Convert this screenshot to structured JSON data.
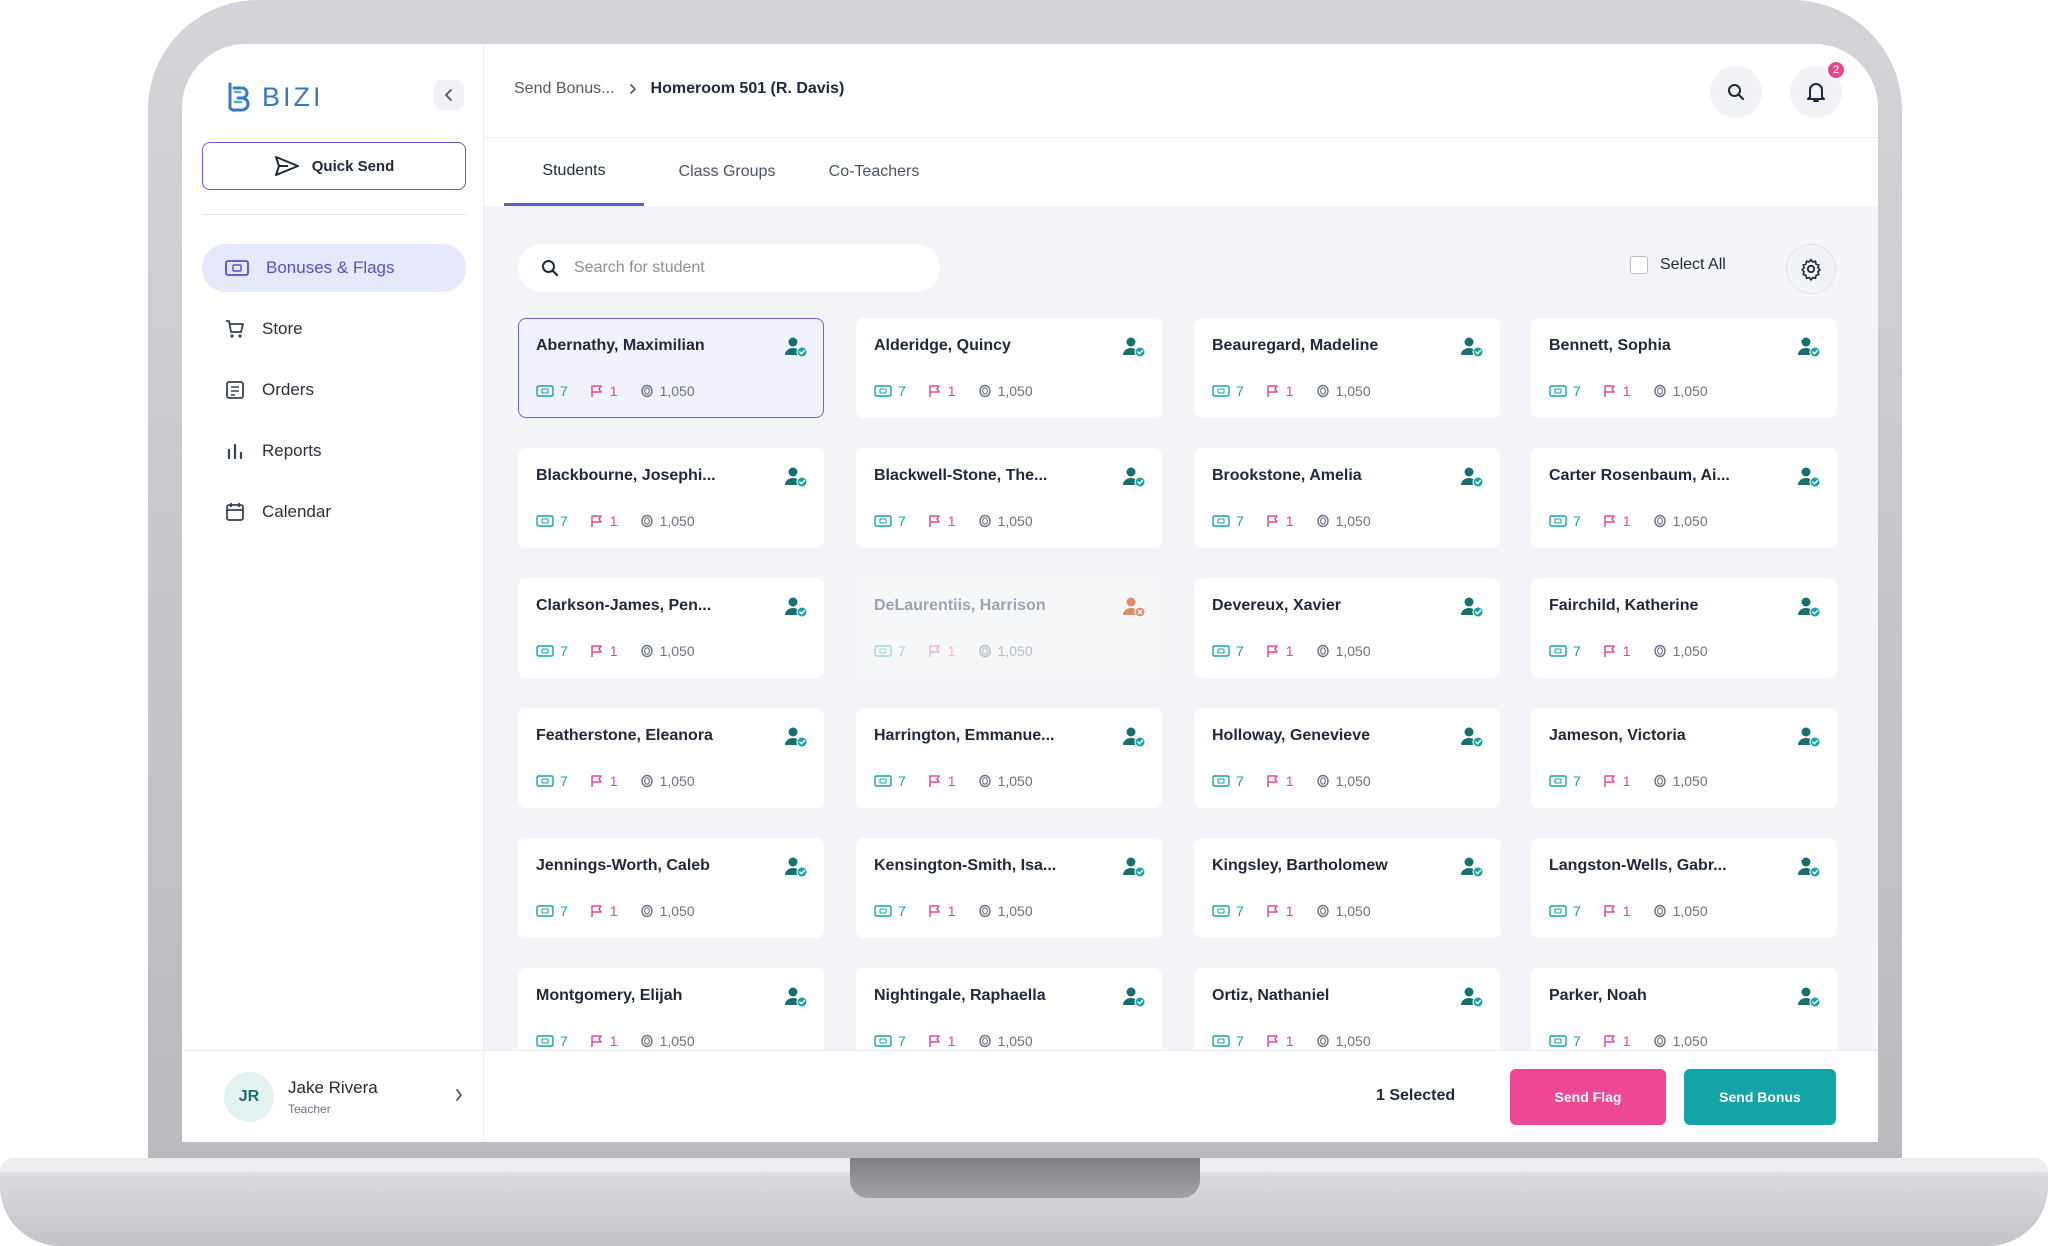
{
  "app": {
    "logo_text": "BIZI",
    "brand_color": "#3a78c2",
    "accent_color": "#5d5fd1"
  },
  "sidebar": {
    "quick_send_label": "Quick Send",
    "items": [
      {
        "label": "Bonuses & Flags",
        "icon": "bonus-ticket-icon",
        "active": true
      },
      {
        "label": "Store",
        "icon": "cart-icon",
        "active": false
      },
      {
        "label": "Orders",
        "icon": "orders-icon",
        "active": false
      },
      {
        "label": "Reports",
        "icon": "bar-chart-icon",
        "active": false
      },
      {
        "label": "Calendar",
        "icon": "calendar-icon",
        "active": false
      }
    ],
    "user": {
      "initials": "JR",
      "name": "Jake Rivera",
      "role": "Teacher"
    }
  },
  "header": {
    "breadcrumb_parent": "Send Bonus...",
    "breadcrumb_current": "Homeroom 501  (R. Davis)",
    "notification_count": "2"
  },
  "tabs": [
    {
      "label": "Students",
      "active": true
    },
    {
      "label": "Class Groups",
      "active": false
    },
    {
      "label": "Co-Teachers",
      "active": false
    }
  ],
  "search": {
    "placeholder": "Search for student",
    "value": ""
  },
  "select_all_label": "Select All",
  "students": [
    {
      "name": "Abernathy, Maximilian",
      "bonus": "7",
      "flags": "1",
      "coins": "1,050",
      "selected": true,
      "disabled": false
    },
    {
      "name": "Alderidge, Quincy",
      "bonus": "7",
      "flags": "1",
      "coins": "1,050",
      "selected": false,
      "disabled": false
    },
    {
      "name": "Beauregard, Madeline",
      "bonus": "7",
      "flags": "1",
      "coins": "1,050",
      "selected": false,
      "disabled": false
    },
    {
      "name": "Bennett, Sophia",
      "bonus": "7",
      "flags": "1",
      "coins": "1,050",
      "selected": false,
      "disabled": false
    },
    {
      "name": "Blackbourne, Josephi...",
      "bonus": "7",
      "flags": "1",
      "coins": "1,050",
      "selected": false,
      "disabled": false
    },
    {
      "name": "Blackwell-Stone, The...",
      "bonus": "7",
      "flags": "1",
      "coins": "1,050",
      "selected": false,
      "disabled": false
    },
    {
      "name": "Brookstone, Amelia",
      "bonus": "7",
      "flags": "1",
      "coins": "1,050",
      "selected": false,
      "disabled": false
    },
    {
      "name": "Carter Rosenbaum, Ai...",
      "bonus": "7",
      "flags": "1",
      "coins": "1,050",
      "selected": false,
      "disabled": false
    },
    {
      "name": "Clarkson-James, Pen...",
      "bonus": "7",
      "flags": "1",
      "coins": "1,050",
      "selected": false,
      "disabled": false
    },
    {
      "name": "DeLaurentiis, Harrison",
      "bonus": "7",
      "flags": "1",
      "coins": "1,050",
      "selected": false,
      "disabled": true
    },
    {
      "name": "Devereux, Xavier",
      "bonus": "7",
      "flags": "1",
      "coins": "1,050",
      "selected": false,
      "disabled": false
    },
    {
      "name": "Fairchild, Katherine",
      "bonus": "7",
      "flags": "1",
      "coins": "1,050",
      "selected": false,
      "disabled": false
    },
    {
      "name": "Featherstone, Eleanora",
      "bonus": "7",
      "flags": "1",
      "coins": "1,050",
      "selected": false,
      "disabled": false
    },
    {
      "name": "Harrington, Emmanue...",
      "bonus": "7",
      "flags": "1",
      "coins": "1,050",
      "selected": false,
      "disabled": false
    },
    {
      "name": "Holloway, Genevieve",
      "bonus": "7",
      "flags": "1",
      "coins": "1,050",
      "selected": false,
      "disabled": false
    },
    {
      "name": "Jameson, Victoria",
      "bonus": "7",
      "flags": "1",
      "coins": "1,050",
      "selected": false,
      "disabled": false
    },
    {
      "name": "Jennings-Worth, Caleb",
      "bonus": "7",
      "flags": "1",
      "coins": "1,050",
      "selected": false,
      "disabled": false
    },
    {
      "name": "Kensington-Smith, Isa...",
      "bonus": "7",
      "flags": "1",
      "coins": "1,050",
      "selected": false,
      "disabled": false
    },
    {
      "name": "Kingsley, Bartholomew",
      "bonus": "7",
      "flags": "1",
      "coins": "1,050",
      "selected": false,
      "disabled": false
    },
    {
      "name": "Langston-Wells, Gabr...",
      "bonus": "7",
      "flags": "1",
      "coins": "1,050",
      "selected": false,
      "disabled": false
    },
    {
      "name": "Montgomery, Elijah",
      "bonus": "7",
      "flags": "1",
      "coins": "1,050",
      "selected": false,
      "disabled": false
    },
    {
      "name": "Nightingale, Raphaella",
      "bonus": "7",
      "flags": "1",
      "coins": "1,050",
      "selected": false,
      "disabled": false
    },
    {
      "name": "Ortiz, Nathaniel",
      "bonus": "7",
      "flags": "1",
      "coins": "1,050",
      "selected": false,
      "disabled": false
    },
    {
      "name": "Parker, Noah",
      "bonus": "7",
      "flags": "1",
      "coins": "1,050",
      "selected": false,
      "disabled": false
    }
  ],
  "footer": {
    "selected_text": "1 Selected",
    "send_flag_label": "Send Flag",
    "send_bonus_label": "Send Bonus",
    "flag_color": "#ec4893",
    "bonus_color": "#14a3a7"
  }
}
